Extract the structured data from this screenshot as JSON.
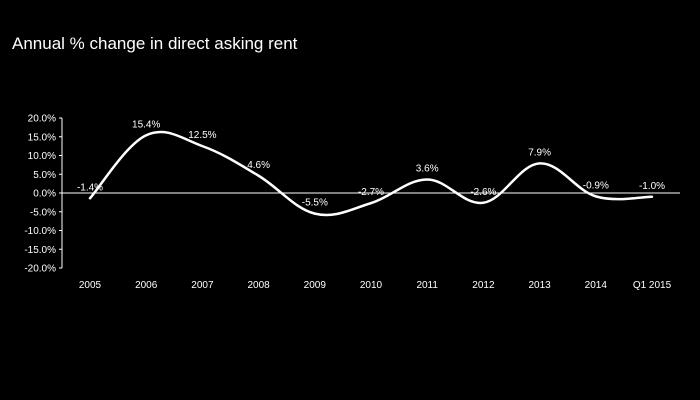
{
  "chart_data": {
    "type": "line",
    "title": "Annual % change in direct asking rent",
    "xlabel": "",
    "ylabel": "",
    "categories": [
      "2005",
      "2006",
      "2007",
      "2008",
      "2009",
      "2010",
      "2011",
      "2012",
      "2013",
      "2014",
      "Q1 2015"
    ],
    "series": [
      {
        "values": [
          -1.4,
          15.4,
          12.5,
          4.6,
          -5.5,
          -2.7,
          3.6,
          -2.6,
          7.9,
          -0.9,
          -1.0
        ],
        "labels": [
          "-1.4%",
          "15.4%",
          "12.5%",
          "4.6%",
          "-5.5%",
          "-2.7%",
          "3.6%",
          "-2.6%",
          "7.9%",
          "-0.9%",
          "-1.0%"
        ]
      }
    ],
    "ylim": [
      -20,
      20
    ],
    "yticks": [
      20,
      15,
      10,
      5,
      0,
      -5,
      -10,
      -15,
      -20
    ],
    "ytick_labels": [
      "20.0%",
      "15.0%",
      "10.0%",
      "5.0%",
      "0.0%",
      "-5.0%",
      "-10.0%",
      "-15.0%",
      "-20.0%"
    ],
    "smooth": true,
    "grid": false,
    "colors": {
      "background": "#000000",
      "line": "#ffffff",
      "text": "#ffffff",
      "axis": "#ffffff"
    }
  }
}
